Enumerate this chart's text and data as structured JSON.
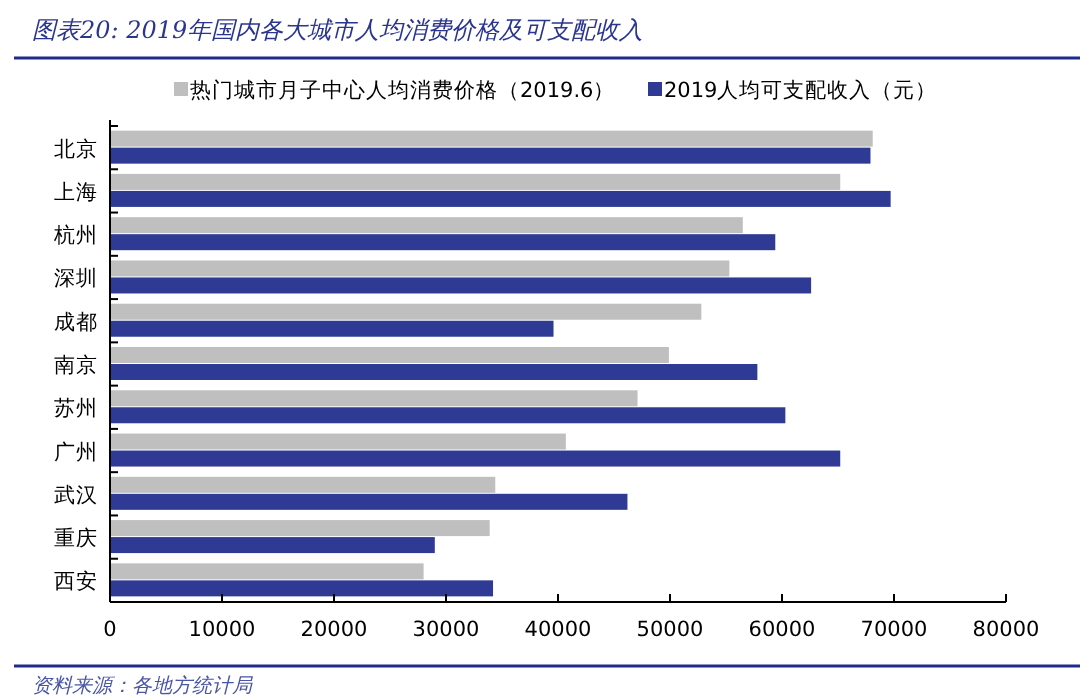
{
  "chart_data": {
    "type": "bar",
    "orientation": "horizontal",
    "title": "图表20:  2019年国内各大城市人均消费价格及可支配收入",
    "categories": [
      "北京",
      "上海",
      "杭州",
      "深圳",
      "成都",
      "南京",
      "苏州",
      "广州",
      "武汉",
      "重庆",
      "西安"
    ],
    "series": [
      {
        "name": "热门城市月子中心人均消费价格（2019.6）",
        "color": "#bfbfbf",
        "values": [
          68100,
          65200,
          56500,
          55300,
          52800,
          49900,
          47100,
          40700,
          34400,
          33900,
          28000
        ]
      },
      {
        "name": "2019人均可支配收入（元）",
        "color": "#2e3a93",
        "values": [
          67900,
          69700,
          59400,
          62600,
          39600,
          57800,
          60300,
          65200,
          46200,
          29000,
          34200
        ]
      }
    ],
    "xlim": [
      0,
      80000
    ],
    "xticks": [
      0,
      10000,
      20000,
      30000,
      40000,
      50000,
      60000,
      70000,
      80000
    ],
    "legend": "top",
    "annotations": [
      "资料来源：各地方统计局"
    ]
  }
}
